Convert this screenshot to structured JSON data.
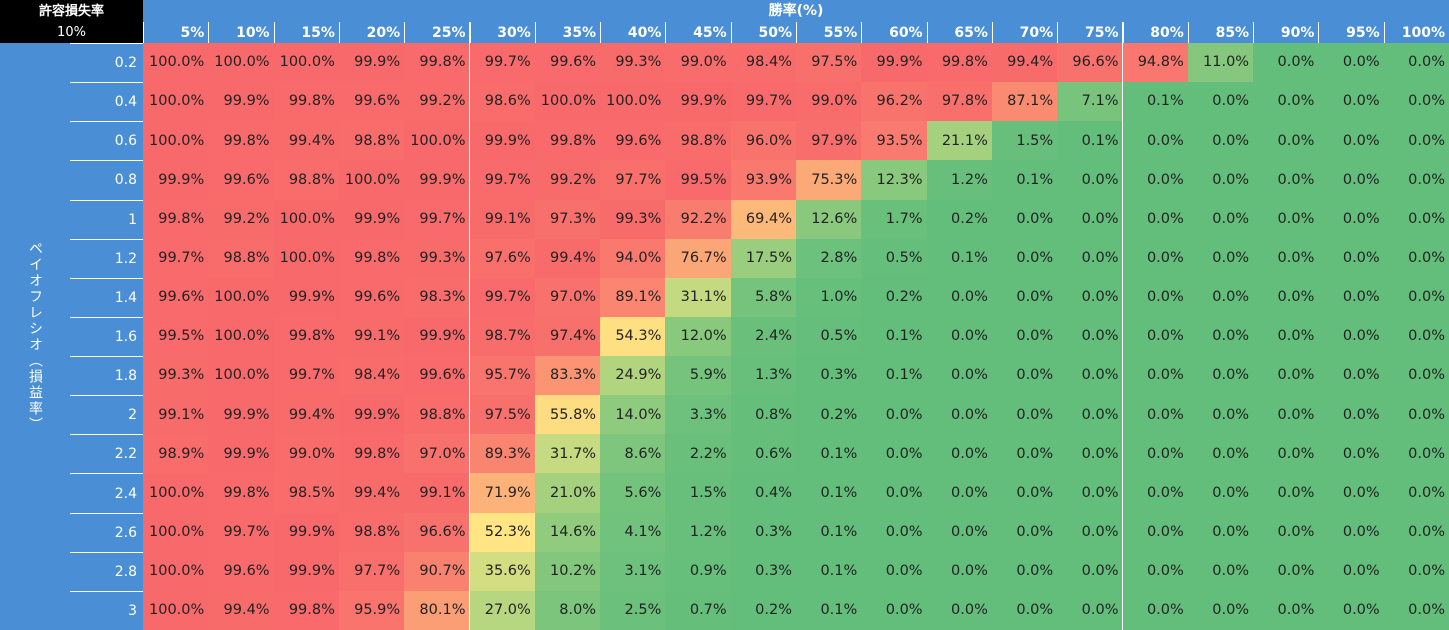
{
  "corner": {
    "title": "許容損失率",
    "value": "10%"
  },
  "chart_data": {
    "type": "heatmap",
    "title": "",
    "xlabel": "勝率(%)",
    "ylabel": "ペイオフレシオ（損益率）",
    "x": [
      "5%",
      "10%",
      "15%",
      "20%",
      "25%",
      "30%",
      "35%",
      "40%",
      "45%",
      "50%",
      "55%",
      "60%",
      "65%",
      "70%",
      "75%",
      "80%",
      "85%",
      "90%",
      "95%",
      "100%"
    ],
    "y": [
      "0.2",
      "0.4",
      "0.6",
      "0.8",
      "1",
      "1.2",
      "1.4",
      "1.6",
      "1.8",
      "2",
      "2.2",
      "2.4",
      "2.6",
      "2.8",
      "3"
    ],
    "color_scale": {
      "low": "#63be7b",
      "mid": "#ffeb84",
      "high": "#f8696b"
    },
    "values": [
      [
        100.0,
        100.0,
        100.0,
        99.9,
        99.8,
        99.7,
        99.6,
        99.3,
        99.0,
        98.4,
        97.5,
        99.9,
        99.8,
        99.4,
        96.6,
        94.8,
        11.0,
        0.0,
        0.0,
        0.0
      ],
      [
        100.0,
        99.9,
        99.8,
        99.6,
        99.2,
        98.6,
        100.0,
        100.0,
        99.9,
        99.7,
        99.0,
        96.2,
        97.8,
        87.1,
        7.1,
        0.1,
        0.0,
        0.0,
        0.0,
        0.0
      ],
      [
        100.0,
        99.8,
        99.4,
        98.8,
        100.0,
        99.9,
        99.8,
        99.6,
        98.8,
        96.0,
        97.9,
        93.5,
        21.1,
        1.5,
        0.1,
        0.0,
        0.0,
        0.0,
        0.0,
        0.0
      ],
      [
        99.9,
        99.6,
        98.8,
        100.0,
        99.9,
        99.7,
        99.2,
        97.7,
        99.5,
        93.9,
        75.3,
        12.3,
        1.2,
        0.1,
        0.0,
        0.0,
        0.0,
        0.0,
        0.0,
        0.0
      ],
      [
        99.8,
        99.2,
        100.0,
        99.9,
        99.7,
        99.1,
        97.3,
        99.3,
        92.2,
        69.4,
        12.6,
        1.7,
        0.2,
        0.0,
        0.0,
        0.0,
        0.0,
        0.0,
        0.0,
        0.0
      ],
      [
        99.7,
        98.8,
        100.0,
        99.8,
        99.3,
        97.6,
        99.4,
        94.0,
        76.7,
        17.5,
        2.8,
        0.5,
        0.1,
        0.0,
        0.0,
        0.0,
        0.0,
        0.0,
        0.0,
        0.0
      ],
      [
        99.6,
        100.0,
        99.9,
        99.6,
        98.3,
        99.7,
        97.0,
        89.1,
        31.1,
        5.8,
        1.0,
        0.2,
        0.0,
        0.0,
        0.0,
        0.0,
        0.0,
        0.0,
        0.0,
        0.0
      ],
      [
        99.5,
        100.0,
        99.8,
        99.1,
        99.9,
        98.7,
        97.4,
        54.3,
        12.0,
        2.4,
        0.5,
        0.1,
        0.0,
        0.0,
        0.0,
        0.0,
        0.0,
        0.0,
        0.0,
        0.0
      ],
      [
        99.3,
        100.0,
        99.7,
        98.4,
        99.6,
        95.7,
        83.3,
        24.9,
        5.9,
        1.3,
        0.3,
        0.1,
        0.0,
        0.0,
        0.0,
        0.0,
        0.0,
        0.0,
        0.0,
        0.0
      ],
      [
        99.1,
        99.9,
        99.4,
        99.9,
        98.8,
        97.5,
        55.8,
        14.0,
        3.3,
        0.8,
        0.2,
        0.0,
        0.0,
        0.0,
        0.0,
        0.0,
        0.0,
        0.0,
        0.0,
        0.0
      ],
      [
        98.9,
        99.9,
        99.0,
        99.8,
        97.0,
        89.3,
        31.7,
        8.6,
        2.2,
        0.6,
        0.1,
        0.0,
        0.0,
        0.0,
        0.0,
        0.0,
        0.0,
        0.0,
        0.0,
        0.0
      ],
      [
        100.0,
        99.8,
        98.5,
        99.4,
        99.1,
        71.9,
        21.0,
        5.6,
        1.5,
        0.4,
        0.1,
        0.0,
        0.0,
        0.0,
        0.0,
        0.0,
        0.0,
        0.0,
        0.0,
        0.0
      ],
      [
        100.0,
        99.7,
        99.9,
        98.8,
        96.6,
        52.3,
        14.6,
        4.1,
        1.2,
        0.3,
        0.1,
        0.0,
        0.0,
        0.0,
        0.0,
        0.0,
        0.0,
        0.0,
        0.0,
        0.0
      ],
      [
        100.0,
        99.6,
        99.9,
        97.7,
        90.7,
        35.6,
        10.2,
        3.1,
        0.9,
        0.3,
        0.1,
        0.0,
        0.0,
        0.0,
        0.0,
        0.0,
        0.0,
        0.0,
        0.0,
        0.0
      ],
      [
        100.0,
        99.4,
        99.8,
        95.9,
        80.1,
        27.0,
        8.0,
        2.5,
        0.7,
        0.2,
        0.1,
        0.0,
        0.0,
        0.0,
        0.0,
        0.0,
        0.0,
        0.0,
        0.0,
        0.0
      ]
    ]
  }
}
